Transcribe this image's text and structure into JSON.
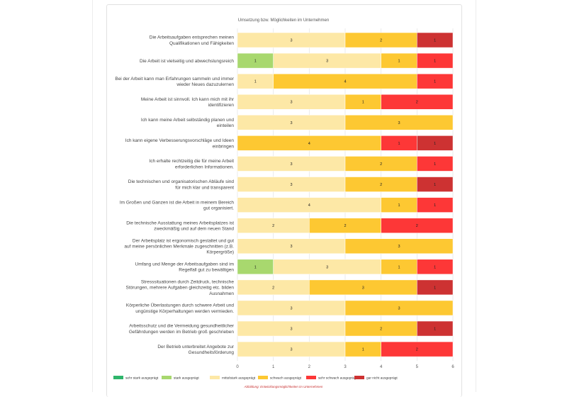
{
  "chart_data": {
    "type": "bar",
    "orientation": "horizontal",
    "stacked": true,
    "title": "Umsetzung bzw. Möglichkeiten im Unternehmen",
    "caption": "Abbildung: Entwicklungsmöglichkeiten im Unternehmen",
    "xlim": [
      0,
      6
    ],
    "xticks": [
      0,
      1,
      2,
      3,
      4,
      5,
      6
    ],
    "grid": true,
    "legend_position": "bottom",
    "categories": [
      [
        "Die Arbeitsaufgaben entsprechen meinen",
        "Qualifikationen und Fähigkeiten"
      ],
      [
        "Die Arbeit ist vielseitig und abwechslungsreich"
      ],
      [
        "Bei der Arbeit kann man Erfahrungen sammeln und immer",
        "wieder Neues dazuzulernen"
      ],
      [
        "Meine Arbeit ist sinnvoll. Ich kann mich mit ihr",
        "identifizieren"
      ],
      [
        "Ich kann meine Arbeit selbständig planen und",
        "einteilen"
      ],
      [
        "Ich kann eigene Verbesserungsvorschläge und Ideen",
        "einbringen"
      ],
      [
        "Ich erhalte rechtzeitig die für meine Arbeit",
        "erforderlichen Informationen."
      ],
      [
        "Die technischen und organisatorischen Abläufe sind",
        "für mich klar und transparent"
      ],
      [
        "Im Großen und Ganzen ist die Arbeit in meinem Bereich",
        "gut organisiert."
      ],
      [
        "Die technische Ausstattung meines Arbeitsplatzes ist",
        "zweckmäßig und auf dem neuen Stand"
      ],
      [
        "Der Arbeitsplatz ist ergonomisch gestaltet und gut",
        "auf meine persönlichen Merkmale zugeschnitten (z.B.",
        "Körpergröße)"
      ],
      [
        "Umfang und Menge der Arbeitsaufgaben sind im",
        "Regelfall gut zu bewältigen"
      ],
      [
        "Stresssituationen durch Zeitdruck, technische",
        "Störungen, mehrere Aufgaben gleichzeitig etc. bilden",
        "Ausnahmen"
      ],
      [
        "Körperliche Überlastungen durch schwere Arbeit und",
        "ungünstige Körperhaltungen werden vermieden."
      ],
      [
        "Arbeitsschutz und die Vermeidung gesundheitlicher",
        "Gefährdungen werden im Betrieb groß geschrieben"
      ],
      [
        "Der Betrieb unterbreitet Angebote zur",
        "Gesundheitsförderung"
      ]
    ],
    "series": [
      {
        "name": "sehr stark ausgeprägt",
        "color": "#2fb56b",
        "values": [
          0,
          0,
          0,
          0,
          0,
          0,
          0,
          0,
          0,
          0,
          0,
          0,
          0,
          0,
          0,
          0
        ]
      },
      {
        "name": "stark ausgeprägt",
        "color": "#a8d86e",
        "values": [
          0,
          1,
          0,
          0,
          0,
          0,
          0,
          0,
          0,
          0,
          0,
          1,
          0,
          0,
          0,
          0
        ]
      },
      {
        "name": "mittelstark ausgeprägt",
        "color": "#fde8a6",
        "values": [
          3,
          3,
          1,
          3,
          3,
          0,
          3,
          3,
          4,
          2,
          3,
          3,
          2,
          3,
          3,
          3
        ]
      },
      {
        "name": "schwach ausgeprägt",
        "color": "#fdc832",
        "values": [
          2,
          1,
          4,
          1,
          3,
          4,
          2,
          2,
          1,
          2,
          3,
          1,
          3,
          3,
          2,
          1
        ]
      },
      {
        "name": "sehr schwach ausgeprägt",
        "color": "#fd3737",
        "values": [
          0,
          1,
          1,
          2,
          0,
          1,
          1,
          0,
          1,
          2,
          0,
          1,
          0,
          0,
          0,
          2
        ]
      },
      {
        "name": "gar nicht ausgeprägt",
        "color": "#cd3232",
        "values": [
          1,
          0,
          0,
          0,
          0,
          1,
          0,
          1,
          0,
          0,
          0,
          0,
          1,
          0,
          1,
          0
        ]
      }
    ]
  }
}
